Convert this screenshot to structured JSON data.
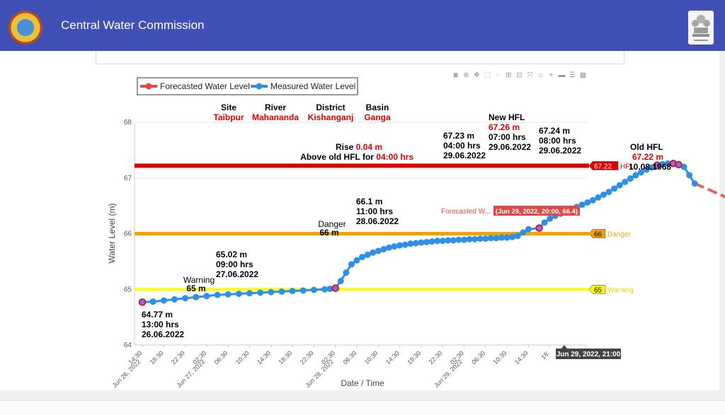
{
  "header": {
    "title": "Central Water Commission"
  },
  "chart_data": {
    "type": "line",
    "xlabel": "Date / Time",
    "ylabel": "Water Level (m)",
    "ylim": [
      64,
      68
    ],
    "yticks": [
      "64",
      "65",
      "66",
      "67",
      "68"
    ],
    "xticks": [
      "14:30\nJun 26, 2022",
      "18:30",
      "22:30",
      "02:30\nJun 27, 2022",
      "06:30",
      "10:30",
      "14:30",
      "18:30",
      "22:30",
      "02:30\nJun 28, 2022",
      "06:30",
      "10:30",
      "14:30",
      "18:30",
      "22:30",
      "02:30\nJun 29, 2022",
      "06:30",
      "10:30",
      "14:30",
      "18:"
    ],
    "legend": {
      "placement": "top-left",
      "forecast_label": "Forecasted Water Level",
      "measured_label": "Measured Water Level"
    },
    "info": {
      "site_label": "Site",
      "site": "Taibpur",
      "river_label": "River",
      "river": "Mahananda",
      "district_label": "District",
      "district": "Kishanganj",
      "basin_label": "Basin",
      "basin": "Ganga"
    },
    "levels": {
      "hfl": {
        "value": 67.22,
        "tag": "67.22",
        "label": "HFL",
        "color": "#e00000"
      },
      "danger": {
        "value": 66,
        "tag": "66",
        "label": "Danger",
        "color": "#f5a300"
      },
      "warning": {
        "value": 65,
        "tag": "65",
        "label": "Warning",
        "color": "#ffff00"
      }
    },
    "annotations": {
      "warning": {
        "title": "Warning",
        "value": "65 m"
      },
      "danger": {
        "title": "Danger",
        "value": "66 m"
      },
      "start": [
        "64.77 m",
        "13:00 hrs",
        "26.06.2022"
      ],
      "p1": [
        "65.02 m",
        "09:00 hrs",
        "27.06.2022"
      ],
      "p2": [
        "66.1 m",
        "11:00 hrs",
        "28.06.2022"
      ],
      "p3": [
        "67.23 m",
        "04:00 hrs",
        "29.06.2022"
      ],
      "newhfl": {
        "title": "New HFL",
        "value": "67.26 m",
        "time": "07:00 hrs",
        "date": "29.06.2022"
      },
      "p4": [
        "67.24 m",
        "08:00 hrs",
        "29.06.2022"
      ],
      "oldhfl": {
        "title": "Old HFL",
        "value": "67.22 m",
        "date": "10.08.1968"
      },
      "rise": {
        "prefix": "Rise ",
        "value": "0.04 m",
        "line2": "Above old HFL for ",
        "duration": "04:00 hrs"
      }
    },
    "forecast_tooltip": {
      "label": "Forecasted W...",
      "text": "(Jun 29, 2022, 20:00, 66.4)"
    },
    "x_hover": "Jun 29, 2022, 21:00",
    "measured": [
      [
        0,
        64.77
      ],
      [
        2,
        64.78
      ],
      [
        4,
        64.8
      ],
      [
        6,
        64.82
      ],
      [
        8,
        64.84
      ],
      [
        10,
        64.86
      ],
      [
        12,
        64.88
      ],
      [
        14,
        64.9
      ],
      [
        16,
        64.91
      ],
      [
        18,
        64.92
      ],
      [
        20,
        64.93
      ],
      [
        22,
        64.94
      ],
      [
        24,
        64.95
      ],
      [
        26,
        64.96
      ],
      [
        28,
        64.97
      ],
      [
        30,
        64.98
      ],
      [
        32,
        64.99
      ],
      [
        34,
        65.0
      ],
      [
        35,
        65.01
      ],
      [
        36,
        65.02
      ],
      [
        37,
        65.15
      ],
      [
        38,
        65.3
      ],
      [
        39,
        65.45
      ],
      [
        40,
        65.52
      ],
      [
        41,
        65.58
      ],
      [
        42,
        65.62
      ],
      [
        43,
        65.66
      ],
      [
        44,
        65.69
      ],
      [
        45,
        65.72
      ],
      [
        46,
        65.75
      ],
      [
        47,
        65.77
      ],
      [
        48,
        65.79
      ],
      [
        49,
        65.8
      ],
      [
        50,
        65.82
      ],
      [
        51,
        65.83
      ],
      [
        52,
        65.84
      ],
      [
        53,
        65.85
      ],
      [
        54,
        65.86
      ],
      [
        55,
        65.87
      ],
      [
        56,
        65.87
      ],
      [
        57,
        65.88
      ],
      [
        58,
        65.88
      ],
      [
        59,
        65.89
      ],
      [
        60,
        65.89
      ],
      [
        61,
        65.9
      ],
      [
        62,
        65.9
      ],
      [
        63,
        65.91
      ],
      [
        64,
        65.91
      ],
      [
        65,
        65.92
      ],
      [
        66,
        65.92
      ],
      [
        67,
        65.93
      ],
      [
        68,
        65.93
      ],
      [
        69,
        65.94
      ],
      [
        70,
        65.96
      ],
      [
        71,
        66.02
      ],
      [
        72,
        66.08
      ],
      [
        74,
        66.1
      ],
      [
        75,
        66.2
      ],
      [
        76,
        66.27
      ],
      [
        77,
        66.32
      ],
      [
        78,
        66.36
      ],
      [
        79,
        66.4
      ],
      [
        80,
        66.44
      ],
      [
        81,
        66.48
      ],
      [
        82,
        66.52
      ],
      [
        83,
        66.56
      ],
      [
        84,
        66.6
      ],
      [
        85,
        66.65
      ],
      [
        86,
        66.7
      ],
      [
        87,
        66.75
      ],
      [
        88,
        66.81
      ],
      [
        89,
        66.87
      ],
      [
        90,
        66.93
      ],
      [
        91,
        66.99
      ],
      [
        92,
        67.05
      ],
      [
        93,
        67.1
      ],
      [
        94,
        67.15
      ],
      [
        95,
        67.19
      ],
      [
        96,
        67.23
      ],
      [
        97,
        67.25
      ],
      [
        98,
        67.26
      ],
      [
        99,
        67.26
      ],
      [
        100,
        67.24
      ],
      [
        101,
        67.2
      ],
      [
        102,
        67.05
      ],
      [
        103,
        66.9
      ]
    ],
    "highlighted": [
      [
        0,
        64.77
      ],
      [
        36,
        65.02
      ],
      [
        74,
        66.1
      ],
      [
        96,
        67.23
      ],
      [
        99,
        67.26
      ],
      [
        100,
        67.24
      ]
    ],
    "forecast": [
      [
        103,
        66.9
      ],
      [
        115,
        66.4
      ]
    ]
  }
}
